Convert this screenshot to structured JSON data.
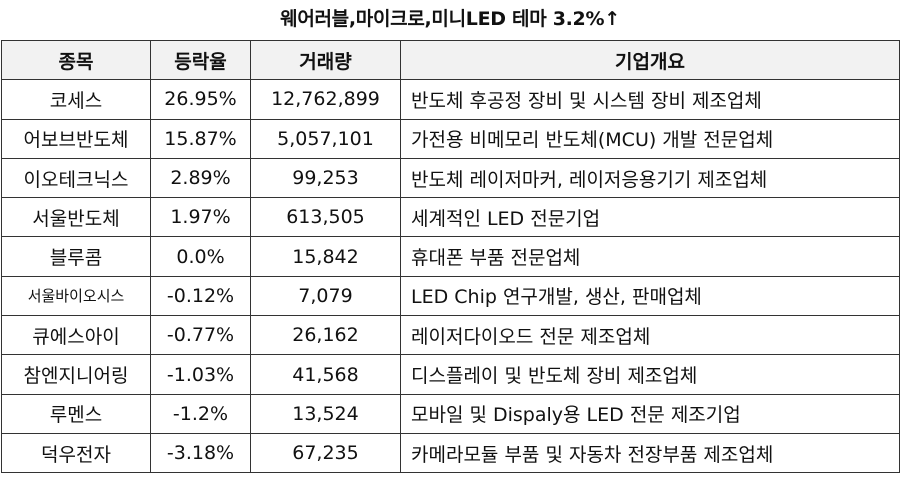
{
  "title": "웨어러블,마이크로,미니LED 테마 3.2%↑",
  "table": {
    "headers": [
      "종목",
      "등락율",
      "거래량",
      "기업개요"
    ],
    "rows": [
      {
        "name": "코세스",
        "change": "26.95%",
        "volume": "12,762,899",
        "desc": "반도체 후공정 장비 및 시스템 장비 제조업체"
      },
      {
        "name": "어보브반도체",
        "change": "15.87%",
        "volume": "5,057,101",
        "desc": "가전용 비메모리 반도체(MCU) 개발 전문업체"
      },
      {
        "name": "이오테크닉스",
        "change": "2.89%",
        "volume": "99,253",
        "desc": "반도체 레이저마커, 레이저응용기기 제조업체"
      },
      {
        "name": "서울반도체",
        "change": "1.97%",
        "volume": "613,505",
        "desc": "세계적인 LED 전문기업"
      },
      {
        "name": "블루콤",
        "change": "0.0%",
        "volume": "15,842",
        "desc": "휴대폰 부품 전문업체"
      },
      {
        "name": "서울바이오시스",
        "change": "-0.12%",
        "volume": "7,079",
        "desc": "LED Chip 연구개발, 생산, 판매업체"
      },
      {
        "name": "큐에스아이",
        "change": "-0.77%",
        "volume": "26,162",
        "desc": "레이저다이오드 전문 제조업체"
      },
      {
        "name": "참엔지니어링",
        "change": "-1.03%",
        "volume": "41,568",
        "desc": "디스플레이 및 반도체 장비 제조업체"
      },
      {
        "name": "루멘스",
        "change": "-1.2%",
        "volume": "13,524",
        "desc": "모바일 및 Dispaly용 LED 전문 제조기업"
      },
      {
        "name": "덕우전자",
        "change": "-3.18%",
        "volume": "67,235",
        "desc": "카메라모듈 부품 및 자동차 전장부품 제조업체"
      }
    ]
  }
}
